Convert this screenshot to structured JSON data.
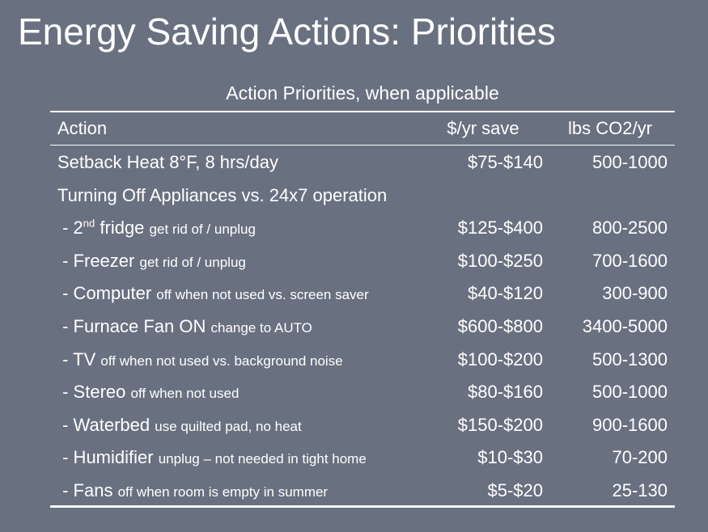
{
  "title": "Energy Saving Actions: Priorities",
  "table": {
    "caption": "Action Priorities, when applicable",
    "headers": {
      "action": "Action",
      "save": "$/yr save",
      "co2": "lbs CO2/yr"
    },
    "rows": [
      {
        "main": "Setback Heat 8°F, 8 hrs/day",
        "sup": "",
        "main_rest": "",
        "note": "",
        "save": "$75-$140",
        "co2": "500-1000"
      },
      {
        "main": "Turning Off Appliances vs. 24x7 operation",
        "sup": "",
        "main_rest": "",
        "note": "",
        "save": "",
        "co2": ""
      },
      {
        "main": " - 2",
        "sup": "nd",
        "main_rest": " fridge",
        "note": "get rid of / unplug",
        "save": "$125-$400",
        "co2": "800-2500"
      },
      {
        "main": " - Freezer",
        "sup": "",
        "main_rest": "",
        "note": "get rid of / unplug",
        "save": "$100-$250",
        "co2": "700-1600"
      },
      {
        "main": " - Computer",
        "sup": "",
        "main_rest": "",
        "note": "off when not used vs. screen saver",
        "save": "$40-$120",
        "co2": "300-900"
      },
      {
        "main": " - Furnace Fan ON",
        "sup": "",
        "main_rest": "",
        "note": "change to AUTO",
        "save": "$600-$800",
        "co2": "3400-5000"
      },
      {
        "main": " - TV",
        "sup": "",
        "main_rest": "",
        "note": "off when not used vs. background noise",
        "save": "$100-$200",
        "co2": "500-1300"
      },
      {
        "main": " - Stereo",
        "sup": "",
        "main_rest": "",
        "note": "off when not used",
        "save": "$80-$160",
        "co2": "500-1000"
      },
      {
        "main": " - Waterbed",
        "sup": "",
        "main_rest": "",
        "note": "use quilted pad, no heat",
        "save": "$150-$200",
        "co2": "900-1600"
      },
      {
        "main": " - Humidifier",
        "sup": "",
        "main_rest": "",
        "note": "unplug – not needed in tight home",
        "save": "$10-$30",
        "co2": "70-200"
      },
      {
        "main": " - Fans",
        "sup": "",
        "main_rest": "",
        "note": "off when room is empty in summer",
        "save": "$5-$20",
        "co2": "25-130"
      }
    ]
  },
  "colors": {
    "background": "#697080",
    "text": "#ffffff"
  }
}
